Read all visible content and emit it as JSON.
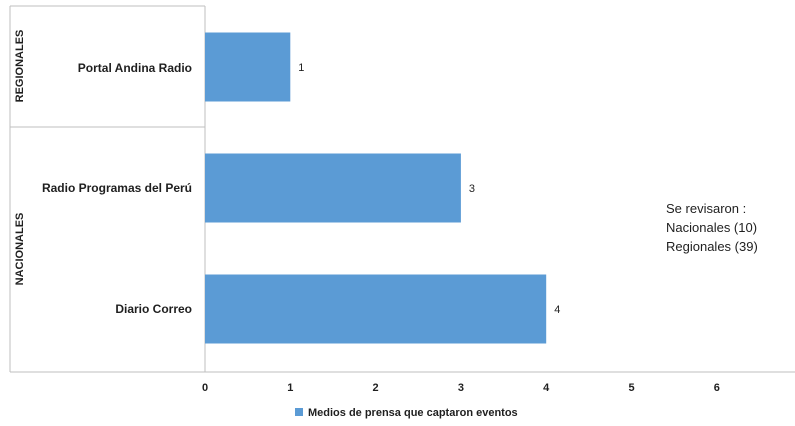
{
  "chart_data": {
    "type": "bar",
    "orientation": "horizontal",
    "categories": [
      "Portal Andina Radio",
      "Radio Programas del Perú",
      "Diario Correo"
    ],
    "groups": [
      {
        "label": "REGIONALES",
        "categories": [
          "Portal Andina Radio"
        ]
      },
      {
        "label": "NACIONALES",
        "categories": [
          "Radio Programas del Perú",
          "Diario Correo"
        ]
      }
    ],
    "series": [
      {
        "name": "Medios de prensa que captaron eventos",
        "values": [
          1,
          3,
          4
        ],
        "color": "#5b9bd5"
      }
    ],
    "xticks": [
      "0",
      "1",
      "2",
      "3",
      "4",
      "5",
      "6"
    ],
    "xlim": [
      0,
      7
    ],
    "grid": false,
    "legend_position": "bottom"
  },
  "note": {
    "lines": [
      "Se revisaron :",
      "Nacionales (10)",
      "Regionales (39)"
    ]
  }
}
